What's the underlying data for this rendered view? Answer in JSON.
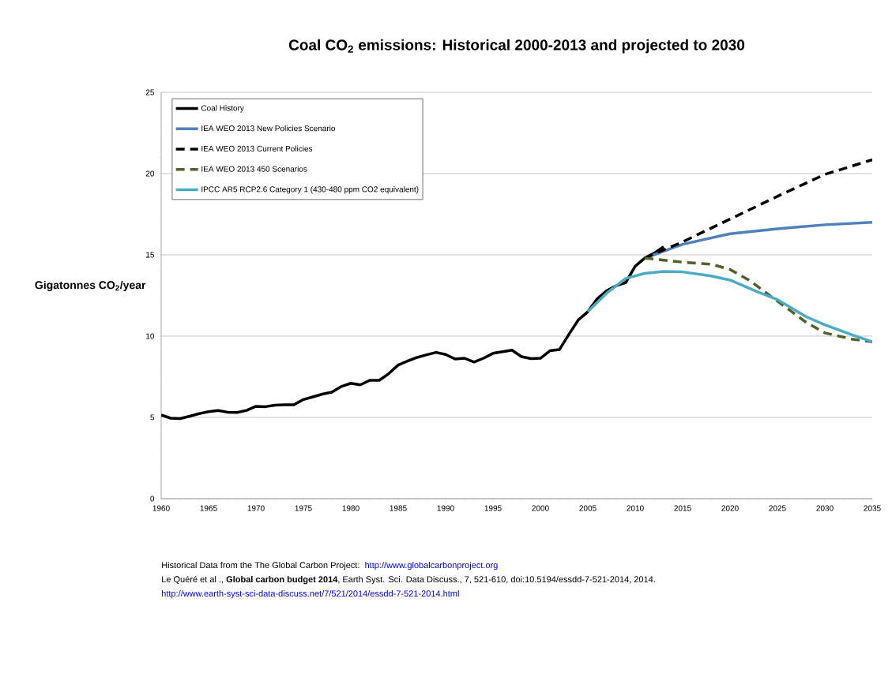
{
  "chart_data": {
    "type": "line",
    "title": "Coal CO$_{2}$ emissions: Historical 2000-2013 and projected to 2030",
    "ylabel": "Gigatonnes CO$_{2}$/year",
    "xlim": [
      1960,
      2035
    ],
    "xticks": [
      1960,
      1965,
      1970,
      1975,
      1980,
      1985,
      1990,
      1995,
      2000,
      2005,
      2010,
      2015,
      2020,
      2025,
      2030,
      2035
    ],
    "ylim": [
      0,
      25
    ],
    "yticks": [
      0,
      5,
      10,
      15,
      20,
      25
    ],
    "grid": "y",
    "legend": "top left",
    "marker": "none",
    "series": [
      {
        "name": "Coal History",
        "color": "#000000",
        "line_style": "solid",
        "x": [
          1960,
          1961,
          1962,
          1963,
          1964,
          1965,
          1966,
          1967,
          1968,
          1969,
          1970,
          1971,
          1972,
          1973,
          1974,
          1975,
          1976,
          1977,
          1978,
          1979,
          1980,
          1981,
          1982,
          1983,
          1984,
          1985,
          1986,
          1987,
          1988,
          1989,
          1990,
          1991,
          1992,
          1993,
          1994,
          1995,
          1996,
          1997,
          1998,
          1999,
          2000,
          2001,
          2002,
          2003,
          2004,
          2005,
          2006,
          2007,
          2008,
          2009,
          2010,
          2011,
          2012,
          2013
        ],
        "values": [
          5.15,
          4.95,
          4.93,
          5.07,
          5.23,
          5.35,
          5.42,
          5.32,
          5.3,
          5.43,
          5.68,
          5.66,
          5.75,
          5.78,
          5.78,
          6.1,
          6.26,
          6.43,
          6.55,
          6.9,
          7.1,
          7.0,
          7.28,
          7.28,
          7.69,
          8.22,
          8.47,
          8.69,
          8.85,
          9.0,
          8.87,
          8.59,
          8.64,
          8.4,
          8.64,
          8.94,
          9.04,
          9.14,
          8.74,
          8.62,
          8.64,
          9.1,
          9.17,
          10.1,
          11.0,
          11.5,
          12.3,
          12.8,
          13.1,
          13.3,
          14.3,
          14.8,
          15.1,
          15.5
        ]
      },
      {
        "name": "IEA WEO 2013 New Policies Scenario",
        "color": "#4f81bd",
        "line_style": "solid",
        "x": [
          2011,
          2015,
          2020,
          2025,
          2030,
          2035
        ],
        "values": [
          14.8,
          15.65,
          16.3,
          16.6,
          16.85,
          17.0
        ]
      },
      {
        "name": "IEA WEO 2013 Current Policies",
        "color": "#000000",
        "line_style": "dashed",
        "x": [
          2011,
          2015,
          2020,
          2025,
          2030,
          2035
        ],
        "values": [
          14.8,
          15.8,
          17.2,
          18.6,
          19.95,
          20.85
        ]
      },
      {
        "name": "IEA WEO 2013 450 Scenarios",
        "color": "#4f6228",
        "line_style": "dashed",
        "x": [
          2011,
          2015,
          2018,
          2020,
          2022,
          2025,
          2028,
          2030,
          2033,
          2035
        ],
        "values": [
          14.8,
          14.55,
          14.43,
          14.1,
          13.45,
          12.15,
          10.86,
          10.2,
          9.8,
          9.65
        ]
      },
      {
        "name": "IPCC AR5 RCP2.6 Category 1 (430-480 ppm CO2 equivalent)",
        "color": "#4bacc6",
        "line_style": "solid",
        "x": [
          2005,
          2007,
          2009,
          2011,
          2013,
          2015,
          2018,
          2020,
          2023,
          2025,
          2028,
          2030,
          2033,
          2035
        ],
        "values": [
          11.5,
          12.65,
          13.55,
          13.86,
          13.98,
          13.95,
          13.7,
          13.45,
          12.7,
          12.25,
          11.2,
          10.7,
          10.05,
          9.65
        ]
      }
    ],
    "annotations": [
      "Historical Data from the The Global Carbon Project:",
      "http://www.globalcarbonproject.org",
      "Le Quéré et al ., **Global carbon budget 2014**, Earth Syst. Sci. Data Discuss., 7, 521-610, doi:10.5194/essdd-7-521-2014, 2014.",
      "http://www.earth-syst-sci-data-discuss.net/7/521/2014/essdd-7-521-2014.html"
    ]
  }
}
